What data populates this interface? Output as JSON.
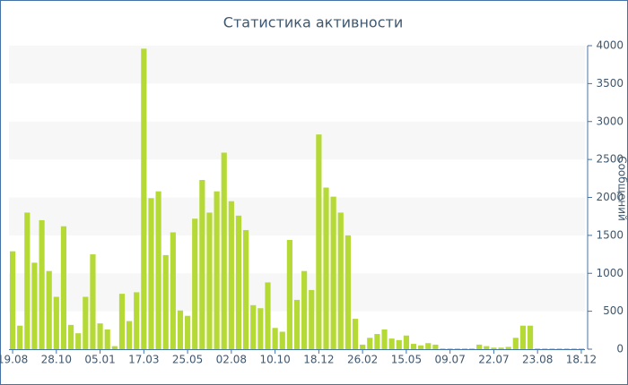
{
  "chart_data": {
    "type": "bar",
    "title": "Статистика активности",
    "y_label": "Сообщений",
    "categories": [
      "19.08",
      null,
      null,
      null,
      null,
      null,
      "28.10",
      null,
      null,
      null,
      null,
      null,
      "05.01",
      null,
      null,
      null,
      null,
      null,
      "17.03",
      null,
      null,
      null,
      null,
      null,
      "25.05",
      null,
      null,
      null,
      null,
      null,
      "02.08",
      null,
      null,
      null,
      null,
      null,
      "10.10",
      null,
      null,
      null,
      null,
      null,
      "18.12",
      null,
      null,
      null,
      null,
      null,
      "26.02",
      null,
      null,
      null,
      null,
      null,
      "15.05",
      null,
      null,
      null,
      null,
      null,
      "09.07",
      null,
      null,
      null,
      null,
      null,
      "22.07",
      null,
      null,
      null,
      null,
      null,
      "23.08",
      null,
      null,
      null,
      null,
      null,
      "18.12"
    ],
    "values": [
      1290,
      310,
      1800,
      1140,
      1700,
      1030,
      690,
      1620,
      320,
      210,
      690,
      1250,
      340,
      260,
      40,
      730,
      370,
      750,
      3960,
      1990,
      2080,
      1240,
      1540,
      510,
      440,
      1720,
      2230,
      1800,
      2080,
      2590,
      1950,
      1760,
      1570,
      580,
      540,
      880,
      280,
      230,
      1440,
      650,
      1030,
      780,
      2830,
      2130,
      2010,
      1800,
      1500,
      400,
      60,
      150,
      200,
      260,
      140,
      120,
      180,
      70,
      50,
      80,
      60,
      10,
      10,
      10,
      10,
      10,
      60,
      40,
      20,
      20,
      30,
      150,
      310,
      310,
      10,
      10,
      10,
      10,
      10,
      10,
      10
    ],
    "color": "#b5d935",
    "ylim": [
      0,
      4000
    ],
    "yticks": [
      0,
      500,
      1000,
      1500,
      2000,
      2500,
      3000,
      3500,
      4000
    ],
    "grid": "bands",
    "y_axis_side": "right"
  }
}
